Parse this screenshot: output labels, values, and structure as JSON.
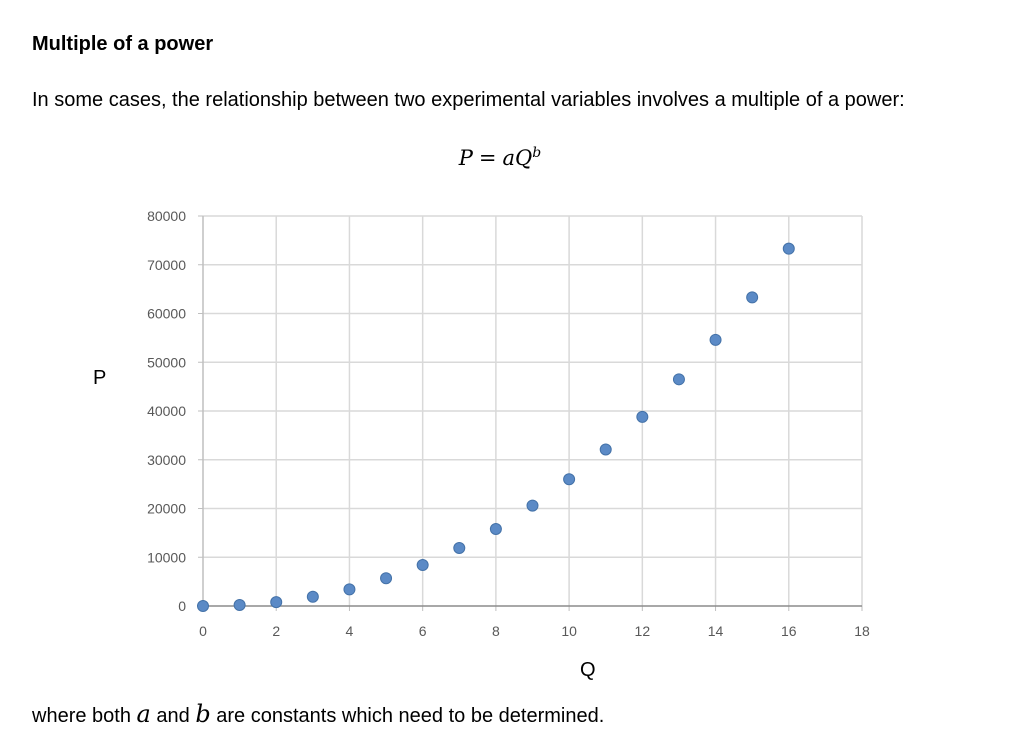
{
  "section": {
    "heading": "Multiple of a power",
    "intro": "In some cases, the relationship between two experimental variables involves a multiple of a power:",
    "formula": {
      "lhs": "P",
      "equals": "=",
      "coef": "a",
      "base": "Q",
      "exp": "b"
    },
    "outro": {
      "before": "where both ",
      "var_a": "a",
      "mid": " and ",
      "var_b": "b",
      "after": " are constants which need to be determined."
    }
  },
  "chart_data": {
    "type": "scatter",
    "xlabel": "Q",
    "ylabel": "P",
    "xlim": [
      0,
      18
    ],
    "ylim": [
      0,
      80000
    ],
    "xticks": [
      0,
      2,
      4,
      6,
      8,
      10,
      12,
      14,
      16,
      18
    ],
    "yticks": [
      0,
      10000,
      20000,
      30000,
      40000,
      50000,
      60000,
      70000,
      80000
    ],
    "grid": true,
    "marker_color": "#5b8ac6",
    "marker_edge": "#4472a8",
    "x": [
      0,
      1,
      2,
      3,
      4,
      5,
      6,
      7,
      8,
      9,
      10,
      11,
      12,
      13,
      14,
      15,
      16
    ],
    "y": [
      0,
      200,
      800,
      1900,
      3400,
      5700,
      8400,
      11900,
      15800,
      20600,
      26000,
      32100,
      38800,
      46500,
      54600,
      63300,
      73300
    ]
  }
}
